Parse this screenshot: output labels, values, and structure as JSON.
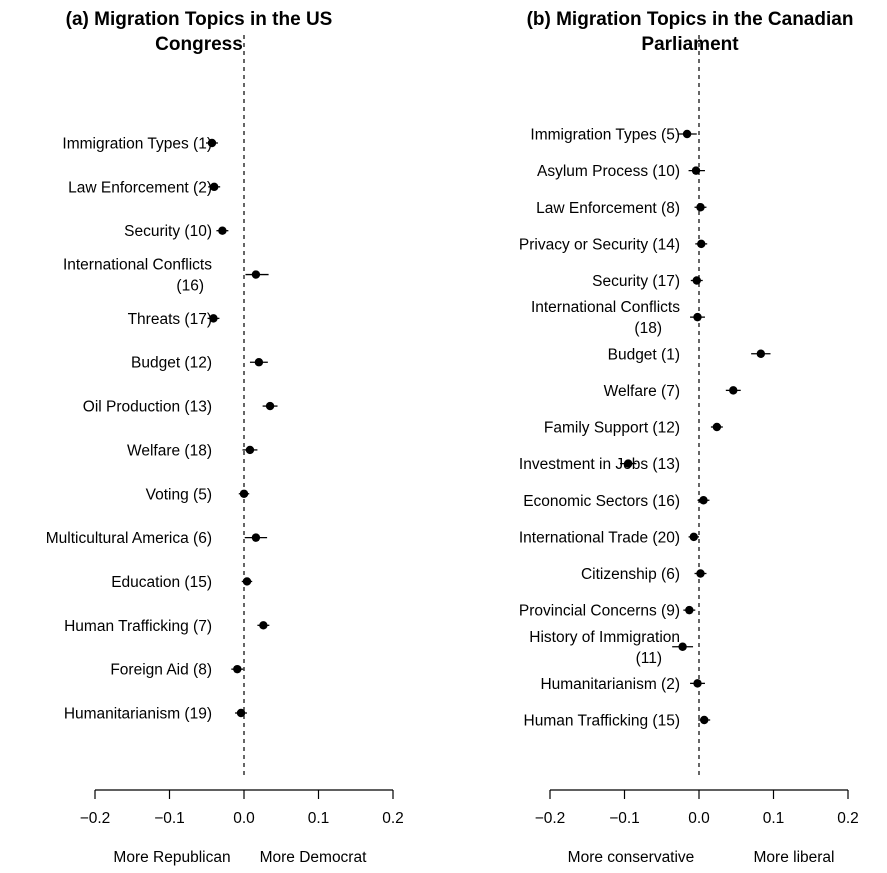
{
  "chart_data": [
    {
      "type": "scatter",
      "title_lines": [
        "(a) Migration Topics in the US",
        "Congress"
      ],
      "xlim": [
        -0.2,
        0.2
      ],
      "ticks": [
        "−0.2",
        "−0.1",
        "0.0",
        "0.1",
        "0.2"
      ],
      "tick_values": [
        -0.2,
        -0.1,
        0.0,
        0.1,
        0.2
      ],
      "direction_labels": [
        "More Republican",
        "More Democrat"
      ],
      "reference_line": 0,
      "topics": [
        {
          "label": [
            "Immigration Types (1)"
          ],
          "x": -0.043,
          "ci": [
            -0.051,
            -0.035
          ]
        },
        {
          "label": [
            "Law Enforcement (2)"
          ],
          "x": -0.04,
          "ci": [
            -0.048,
            -0.032
          ]
        },
        {
          "label": [
            "Security (10)"
          ],
          "x": -0.029,
          "ci": [
            -0.037,
            -0.021
          ]
        },
        {
          "label": [
            "International Conflicts",
            "(16)"
          ],
          "x": 0.016,
          "ci": [
            0.002,
            0.033
          ]
        },
        {
          "label": [
            "Threats (17)"
          ],
          "x": -0.041,
          "ci": [
            -0.049,
            -0.033
          ]
        },
        {
          "label": [
            "Budget (12)"
          ],
          "x": 0.02,
          "ci": [
            0.008,
            0.032
          ]
        },
        {
          "label": [
            "Oil Production (13)"
          ],
          "x": 0.035,
          "ci": [
            0.025,
            0.045
          ]
        },
        {
          "label": [
            "Welfare (18)"
          ],
          "x": 0.008,
          "ci": [
            -0.002,
            0.018
          ]
        },
        {
          "label": [
            "Voting (5)"
          ],
          "x": 0.0,
          "ci": [
            -0.007,
            0.007
          ]
        },
        {
          "label": [
            "Multicultural America (6)"
          ],
          "x": 0.016,
          "ci": [
            0.001,
            0.031
          ]
        },
        {
          "label": [
            "Education (15)"
          ],
          "x": 0.004,
          "ci": [
            -0.003,
            0.011
          ]
        },
        {
          "label": [
            "Human Trafficking (7)"
          ],
          "x": 0.026,
          "ci": [
            0.018,
            0.034
          ]
        },
        {
          "label": [
            "Foreign Aid (8)"
          ],
          "x": -0.009,
          "ci": [
            -0.017,
            -0.001
          ]
        },
        {
          "label": [
            "Humanitarianism (19)"
          ],
          "x": -0.004,
          "ci": [
            -0.012,
            0.004
          ]
        }
      ]
    },
    {
      "type": "scatter",
      "title_lines": [
        "(b) Migration Topics in the Canadian",
        "Parliament"
      ],
      "xlim": [
        -0.2,
        0.2
      ],
      "ticks": [
        "−0.2",
        "−0.1",
        "0.0",
        "0.1",
        "0.2"
      ],
      "tick_values": [
        -0.2,
        -0.1,
        0.0,
        0.1,
        0.2
      ],
      "direction_labels": [
        "More conservative",
        "More liberal"
      ],
      "reference_line": 0,
      "topics": [
        {
          "label": [
            "Immigration Types (5)"
          ],
          "x": -0.016,
          "ci": [
            -0.029,
            -0.003
          ]
        },
        {
          "label": [
            "Asylum Process (10)"
          ],
          "x": -0.004,
          "ci": [
            -0.014,
            0.008
          ]
        },
        {
          "label": [
            "Law Enforcement (8)"
          ],
          "x": 0.002,
          "ci": [
            -0.006,
            0.01
          ]
        },
        {
          "label": [
            "Privacy or Security (14)"
          ],
          "x": 0.003,
          "ci": [
            -0.005,
            0.011
          ]
        },
        {
          "label": [
            "Security (17)"
          ],
          "x": -0.003,
          "ci": [
            -0.011,
            0.005
          ]
        },
        {
          "label": [
            "International Conflicts",
            "(18)"
          ],
          "x": -0.002,
          "ci": [
            -0.012,
            0.008
          ]
        },
        {
          "label": [
            "Budget (1)"
          ],
          "x": 0.083,
          "ci": [
            0.07,
            0.096
          ]
        },
        {
          "label": [
            "Welfare (7)"
          ],
          "x": 0.046,
          "ci": [
            0.036,
            0.056
          ]
        },
        {
          "label": [
            "Family Support (12)"
          ],
          "x": 0.024,
          "ci": [
            0.016,
            0.032
          ]
        },
        {
          "label": [
            "Investment in Jobs (13)"
          ],
          "x": -0.095,
          "ci": [
            -0.106,
            -0.084
          ]
        },
        {
          "label": [
            "Economic Sectors (16)"
          ],
          "x": 0.006,
          "ci": [
            -0.002,
            0.014
          ]
        },
        {
          "label": [
            "International Trade (20)"
          ],
          "x": -0.007,
          "ci": [
            -0.014,
            0.0
          ]
        },
        {
          "label": [
            "Citizenship (6)"
          ],
          "x": 0.002,
          "ci": [
            -0.006,
            0.01
          ]
        },
        {
          "label": [
            "Provincial Concerns (9)"
          ],
          "x": -0.013,
          "ci": [
            -0.021,
            -0.005
          ]
        },
        {
          "label": [
            "History of Immigration",
            "(11)"
          ],
          "x": -0.022,
          "ci": [
            -0.036,
            -0.008
          ]
        },
        {
          "label": [
            "Humanitarianism (2)"
          ],
          "x": -0.002,
          "ci": [
            -0.012,
            0.008
          ]
        },
        {
          "label": [
            "Human Trafficking (15)"
          ],
          "x": 0.007,
          "ci": [
            -0.001,
            0.015
          ]
        }
      ]
    }
  ]
}
